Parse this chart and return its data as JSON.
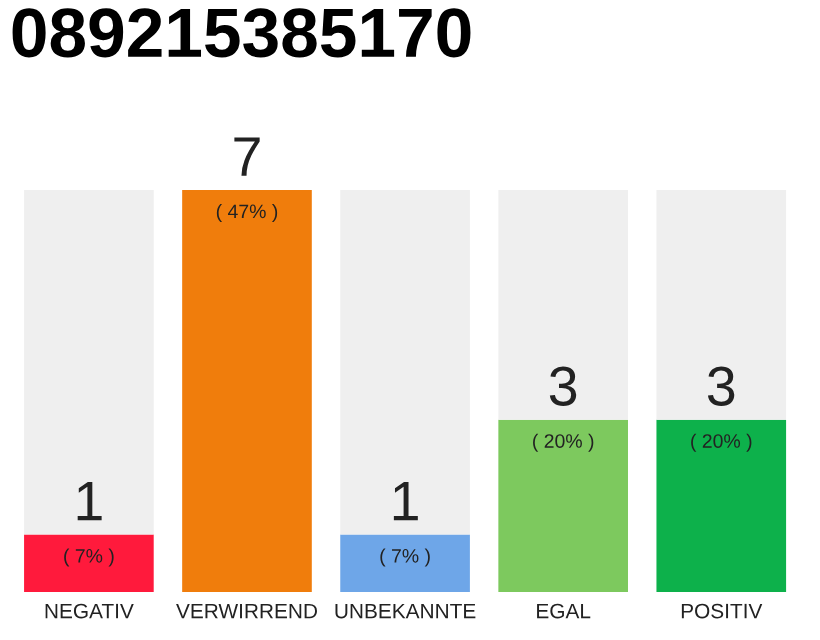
{
  "chart_data": {
    "type": "bar",
    "title": "089215385170",
    "categories": [
      "NEGATIV",
      "VERWIRREND",
      "UNBEKANNTE",
      "EGAL",
      "POSITIV"
    ],
    "stacked": true,
    "series": [
      {
        "colors": [
          "#ff1a3c",
          "#f07d0c",
          "#6ea6e8",
          "#7dc95e",
          "#0db14b"
        ],
        "values": [
          1,
          7,
          1,
          3,
          3
        ],
        "value_labels": [
          "1",
          "7",
          "1",
          "3",
          "3"
        ]
      },
      {
        "color": "#efefef",
        "values": [
          6,
          0,
          6,
          4,
          4
        ]
      }
    ],
    "ylim": [
      0,
      7
    ],
    "grid": false,
    "legend": false,
    "tick_labels": "x",
    "annotations": [
      {
        "text": "( 7% )",
        "x": "NEGATIV",
        "y": 1
      },
      {
        "text": "( 47% )",
        "x": "VERWIRREND",
        "y": 7
      },
      {
        "text": "( 7% )",
        "x": "UNBEKANNTE",
        "y": 1
      },
      {
        "text": "( 20% )",
        "x": "EGAL",
        "y": 3
      },
      {
        "text": "( 20% )",
        "x": "POSITIV",
        "y": 3
      }
    ]
  }
}
